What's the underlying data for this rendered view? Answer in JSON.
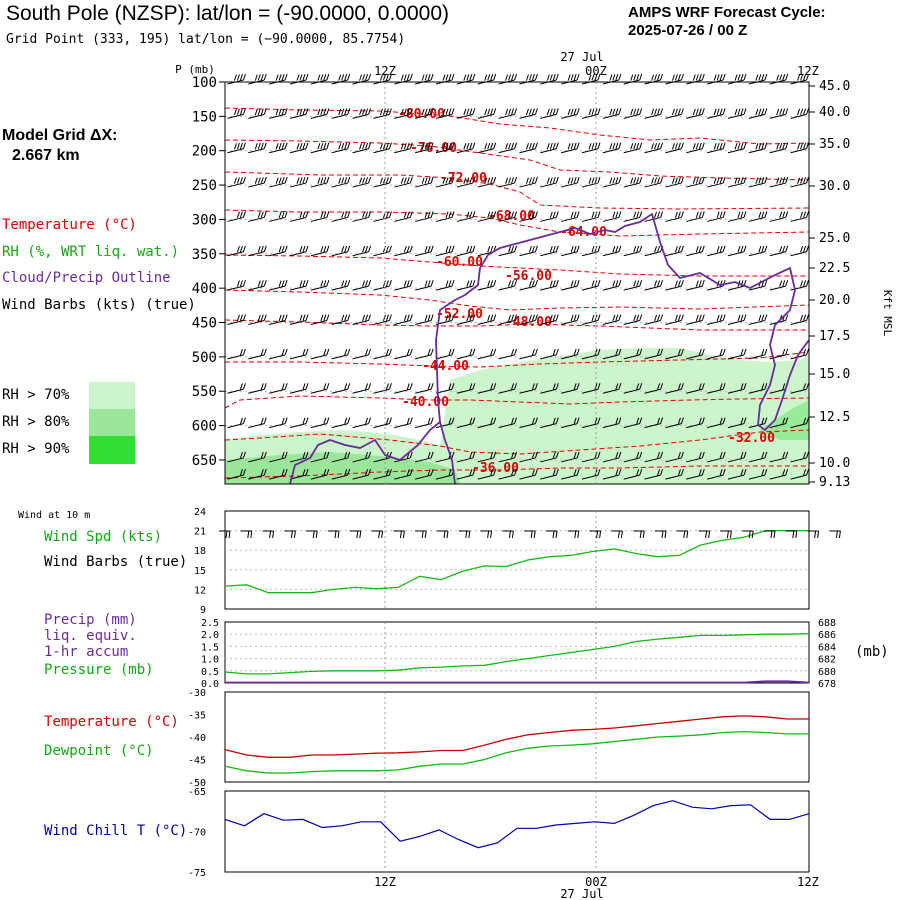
{
  "header": {
    "title": "South Pole (NZSP):  lat/lon = (-90.0000, 0.0000)",
    "subtitle": "Grid Point (333, 195) lat/lon = (−90.0000, 85.7754)",
    "cycle_line1": "AMPS WRF Forecast Cycle:",
    "cycle_line2": "2025-07-26 / 00  Z"
  },
  "left_panel": {
    "grid_line1": "Model Grid ΔX:",
    "grid_line2": "2.667 km",
    "legend_temperature": "Temperature (°C)",
    "legend_rh": "RH (%, WRT liq. wat.)",
    "legend_cloud": "Cloud/Precip Outline",
    "legend_wind": "Wind Barbs (kts) (true)",
    "rh_70": "RH > 70%",
    "rh_80": "RH > 80%",
    "rh_90": "RH > 90%"
  },
  "colors": {
    "temperature": "#dd0000",
    "rh": "#11aa11",
    "cloud": "#6a2c9a",
    "wind": "#000000",
    "rh70": "#ccf5cc",
    "rh80": "#9ae69a",
    "rh90": "#33dd33",
    "windchill": "#0000aa"
  },
  "time_axis": {
    "date_label": "27 Jul",
    "ticks": [
      "12Z",
      "00Z",
      "12Z"
    ]
  },
  "panel_labels": {
    "wind10m_title": "Wind at 10 m",
    "wind_speed": "Wind Spd (kts)",
    "wind_barbs": "Wind Barbs (true)",
    "precip_1": "Precip (mm)",
    "precip_2": "liq. equiv.",
    "precip_3": "1-hr accum",
    "pressure": "Pressure (mb)",
    "pressure_unit": "(mb)",
    "temperature": "Temperature (°C)",
    "dewpoint": "Dewpoint (°C)",
    "windchill": "Wind Chill T (°C)"
  },
  "chart_data": [
    {
      "type": "area",
      "name": "sounding",
      "ylabel": "P (mb)",
      "ylabel_right": "Kft MSL",
      "y_ticks": [
        100,
        150,
        200,
        250,
        300,
        350,
        400,
        450,
        500,
        550,
        600,
        650
      ],
      "y_right_ticks": [
        "45.0",
        "40.0",
        "35.0",
        "30.0",
        "25.0",
        "22.5",
        "20.0",
        "17.5",
        "15.0",
        "12.5",
        "10.0",
        "9.13"
      ],
      "ylim": [
        100,
        685
      ],
      "temperature_labels": [
        "-80.00",
        "-76.00",
        "-72.00",
        "-68.00",
        "-64.00",
        "-60.00",
        "-56.00",
        "-52.00",
        "-48.00",
        "-44.00",
        "-40.00",
        "-36.00",
        "-32.00"
      ],
      "rh_thresholds": [
        "RH > 70%",
        "RH > 80%",
        "RH > 90%"
      ]
    },
    {
      "type": "line",
      "name": "wind_10m",
      "ylim": [
        9,
        24
      ],
      "y_ticks": [
        9,
        12,
        15,
        18,
        21,
        24
      ],
      "wind_speed": [
        12.5,
        12.7,
        11.5,
        11.5,
        11.5,
        12.0,
        12.3,
        12.1,
        12.3,
        14.0,
        13.5,
        14.8,
        15.6,
        15.5,
        16.5,
        17.0,
        17.2,
        17.8,
        18.2,
        17.5,
        17.0,
        17.2,
        18.8,
        19.5,
        20.0,
        21.0,
        21.0,
        21.0
      ]
    },
    {
      "type": "line",
      "name": "precip_pressure",
      "ylim_left": [
        0,
        2.5
      ],
      "y_ticks_left": [
        "0.0",
        "0.5",
        "1.0",
        "1.5",
        "2.0",
        "2.5"
      ],
      "ylim_right": [
        678,
        688
      ],
      "y_ticks_right": [
        "678",
        "680",
        "682",
        "684",
        "686",
        "688"
      ],
      "pressure": [
        679.8,
        679.5,
        679.5,
        679.7,
        679.9,
        680.0,
        680.0,
        680.0,
        680.1,
        680.5,
        680.6,
        680.8,
        680.9,
        681.5,
        682.0,
        682.5,
        683.0,
        683.5,
        684.0,
        684.8,
        685.2,
        685.5,
        685.8,
        685.8,
        685.9,
        686.0,
        686.0,
        686.1
      ],
      "precip": [
        0,
        0,
        0,
        0,
        0,
        0,
        0,
        0,
        0,
        0,
        0,
        0,
        0,
        0,
        0,
        0,
        0,
        0,
        0,
        0,
        0,
        0,
        0,
        0,
        0,
        0.05,
        0.05,
        0
      ]
    },
    {
      "type": "line",
      "name": "temperature_dewpoint",
      "ylim": [
        -50,
        -30
      ],
      "y_ticks": [
        -50,
        -45,
        -40,
        -35,
        -30
      ],
      "temperature": [
        -42.8,
        -44.0,
        -44.5,
        -44.5,
        -44.0,
        -44.0,
        -43.8,
        -43.6,
        -43.5,
        -43.3,
        -43.0,
        -43.0,
        -41.8,
        -40.5,
        -39.5,
        -39.0,
        -38.5,
        -38.3,
        -38.0,
        -37.5,
        -37.0,
        -36.5,
        -36.0,
        -35.5,
        -35.3,
        -35.5,
        -36.0,
        -36.0
      ],
      "dewpoint": [
        -46.5,
        -47.5,
        -48.0,
        -48.0,
        -47.7,
        -47.5,
        -47.5,
        -47.5,
        -47.3,
        -46.5,
        -46.0,
        -46.0,
        -45.0,
        -43.5,
        -42.5,
        -42.0,
        -41.8,
        -41.5,
        -41.0,
        -40.5,
        -40.0,
        -39.8,
        -39.5,
        -39.0,
        -38.8,
        -39.0,
        -39.3,
        -39.3
      ]
    },
    {
      "type": "line",
      "name": "wind_chill",
      "ylim": [
        -75,
        -65
      ],
      "y_ticks": [
        -75,
        -70,
        -65
      ],
      "wind_chill": [
        -68.5,
        -69.3,
        -67.8,
        -68.6,
        -68.5,
        -69.5,
        -69.3,
        -68.8,
        -68.8,
        -71.2,
        -70.6,
        -69.8,
        -71.0,
        -72.0,
        -71.4,
        -69.6,
        -69.6,
        -69.2,
        -69.0,
        -68.8,
        -69.0,
        -68.0,
        -66.8,
        -66.2,
        -67.0,
        -67.2,
        -66.8,
        -66.7,
        -68.5,
        -68.5,
        -67.8
      ]
    }
  ]
}
